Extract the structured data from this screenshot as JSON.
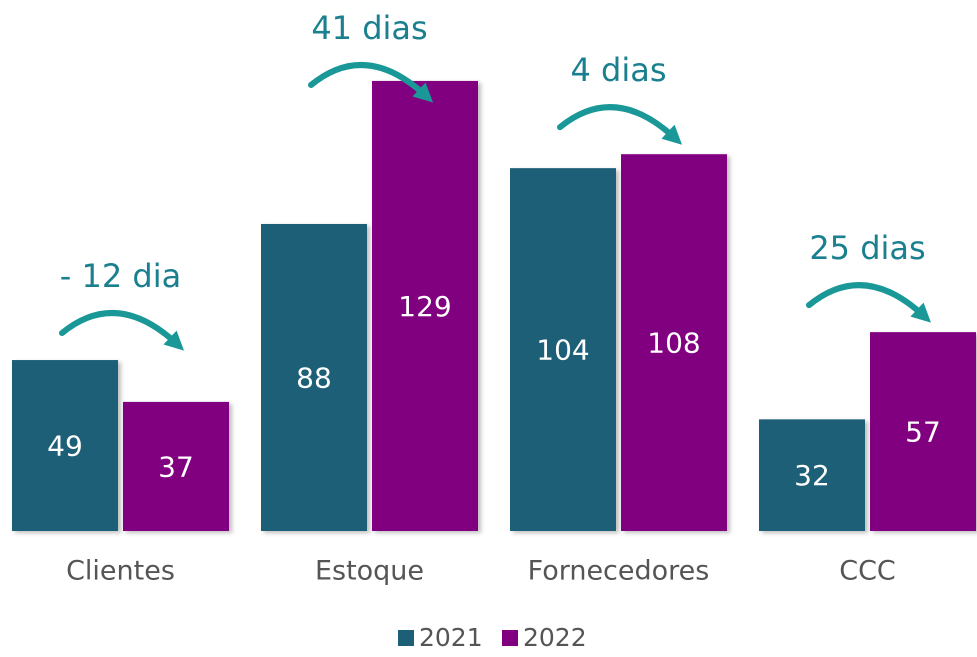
{
  "chart_data": {
    "type": "bar",
    "categories": [
      "Clientes",
      "Estoque",
      "Fornecedores",
      "CCC"
    ],
    "series": [
      {
        "name": "2021",
        "color": "#1d5f77",
        "values": [
          49,
          88,
          104,
          32
        ]
      },
      {
        "name": "2022",
        "color": "#800080",
        "values": [
          37,
          129,
          108,
          57
        ]
      }
    ],
    "annotations": [
      "- 12 dia",
      "41 dias",
      "4 dias",
      "25 dias"
    ],
    "annotation_color": "#1a9898",
    "ylim": [
      0,
      135
    ]
  }
}
